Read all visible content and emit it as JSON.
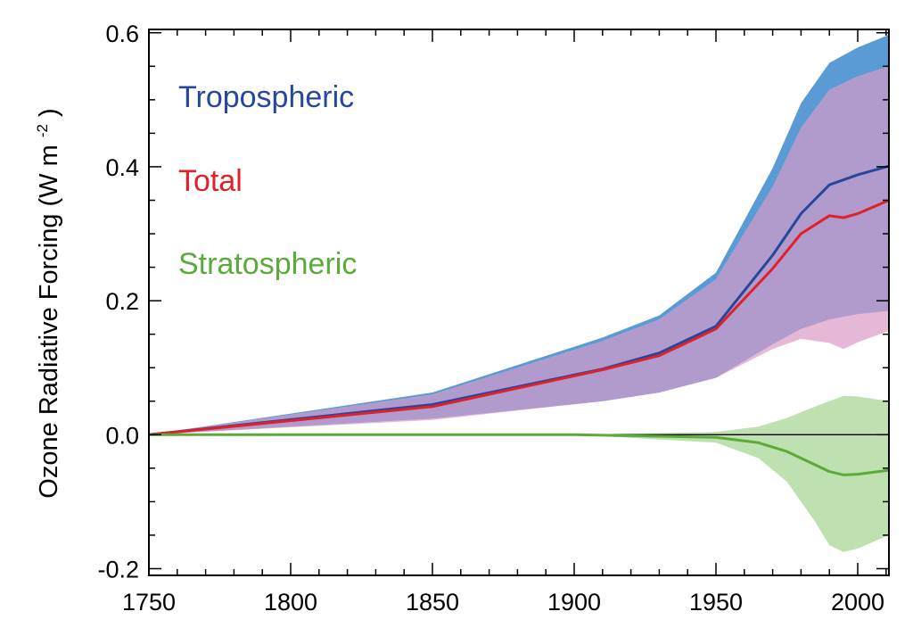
{
  "chart_data": {
    "type": "area",
    "title": "",
    "xlabel": "",
    "ylabel": "Ozone Radiative Forcing",
    "ylabel_units": {
      "open": "(W m",
      "sup": "-2",
      "close": " )"
    },
    "xlim": [
      1750,
      2011
    ],
    "ylim": [
      -0.21,
      0.605
    ],
    "x_ticks": [
      1750,
      1800,
      1850,
      1900,
      1950,
      2000
    ],
    "x_tick_labels": [
      "1750",
      "1800",
      "1850",
      "1900",
      "1950",
      "2000"
    ],
    "y_ticks": [
      -0.2,
      0.0,
      0.2,
      0.4,
      0.6
    ],
    "y_tick_labels": [
      "-0.2",
      "0.0",
      "0.2",
      "0.4",
      "0.6"
    ],
    "grid": false,
    "legend_position": "top-left",
    "colors": {
      "tropospheric_line": "#27479c",
      "tropospheric_band": "#5b9bd5",
      "total_line": "#e0202a",
      "total_band": "#e6b8d8",
      "overlap_band": "#b19bcc",
      "stratospheric_line": "#5aab3a",
      "stratospheric_band": "#bfe0b0"
    },
    "series": [
      {
        "name": "Tropospheric",
        "color": "#27479c",
        "points": [
          [
            1750,
            0.0
          ],
          [
            1850,
            0.045
          ],
          [
            1910,
            0.098
          ],
          [
            1930,
            0.122
          ],
          [
            1950,
            0.162
          ],
          [
            1970,
            0.268
          ],
          [
            1980,
            0.33
          ],
          [
            1990,
            0.373
          ],
          [
            2000,
            0.388
          ],
          [
            2011,
            0.401
          ]
        ],
        "band_upper": [
          [
            1750,
            0.0
          ],
          [
            1850,
            0.063
          ],
          [
            1910,
            0.145
          ],
          [
            1930,
            0.178
          ],
          [
            1950,
            0.242
          ],
          [
            1970,
            0.398
          ],
          [
            1980,
            0.495
          ],
          [
            1990,
            0.555
          ],
          [
            2000,
            0.578
          ],
          [
            2011,
            0.597
          ]
        ],
        "band_lower": [
          [
            1750,
            0.0
          ],
          [
            1850,
            0.024
          ],
          [
            1910,
            0.05
          ],
          [
            1930,
            0.063
          ],
          [
            1950,
            0.085
          ],
          [
            1970,
            0.135
          ],
          [
            1980,
            0.158
          ],
          [
            1990,
            0.172
          ],
          [
            2000,
            0.18
          ],
          [
            2011,
            0.185
          ]
        ]
      },
      {
        "name": "Total",
        "color": "#e0202a",
        "points": [
          [
            1750,
            0.0
          ],
          [
            1850,
            0.042
          ],
          [
            1910,
            0.097
          ],
          [
            1930,
            0.118
          ],
          [
            1950,
            0.158
          ],
          [
            1970,
            0.248
          ],
          [
            1980,
            0.3
          ],
          [
            1990,
            0.327
          ],
          [
            1995,
            0.324
          ],
          [
            2000,
            0.33
          ],
          [
            2011,
            0.35
          ]
        ],
        "band_upper": [
          [
            1750,
            0.0
          ],
          [
            1850,
            0.06
          ],
          [
            1910,
            0.14
          ],
          [
            1930,
            0.172
          ],
          [
            1950,
            0.232
          ],
          [
            1970,
            0.37
          ],
          [
            1980,
            0.458
          ],
          [
            1990,
            0.515
          ],
          [
            2000,
            0.535
          ],
          [
            2011,
            0.55
          ]
        ],
        "band_lower": [
          [
            1750,
            0.0
          ],
          [
            1850,
            0.022
          ],
          [
            1910,
            0.05
          ],
          [
            1930,
            0.063
          ],
          [
            1950,
            0.085
          ],
          [
            1970,
            0.128
          ],
          [
            1980,
            0.143
          ],
          [
            1990,
            0.137
          ],
          [
            1995,
            0.128
          ],
          [
            2000,
            0.138
          ],
          [
            2011,
            0.155
          ]
        ]
      },
      {
        "name": "Stratospheric",
        "color": "#5aab3a",
        "points": [
          [
            1750,
            0.0
          ],
          [
            1900,
            0.0
          ],
          [
            1950,
            -0.004
          ],
          [
            1965,
            -0.012
          ],
          [
            1975,
            -0.025
          ],
          [
            1985,
            -0.045
          ],
          [
            1990,
            -0.055
          ],
          [
            1995,
            -0.06
          ],
          [
            2000,
            -0.059
          ],
          [
            2011,
            -0.053
          ]
        ],
        "band_upper": [
          [
            1750,
            0.0
          ],
          [
            1900,
            0.0
          ],
          [
            1950,
            0.004
          ],
          [
            1965,
            0.012
          ],
          [
            1975,
            0.025
          ],
          [
            1985,
            0.042
          ],
          [
            1995,
            0.058
          ],
          [
            2000,
            0.057
          ],
          [
            2011,
            0.05
          ]
        ],
        "band_lower": [
          [
            1750,
            0.0
          ],
          [
            1900,
            0.0
          ],
          [
            1950,
            -0.012
          ],
          [
            1965,
            -0.035
          ],
          [
            1975,
            -0.07
          ],
          [
            1985,
            -0.13
          ],
          [
            1990,
            -0.165
          ],
          [
            1995,
            -0.175
          ],
          [
            2000,
            -0.17
          ],
          [
            2011,
            -0.15
          ]
        ]
      }
    ]
  }
}
